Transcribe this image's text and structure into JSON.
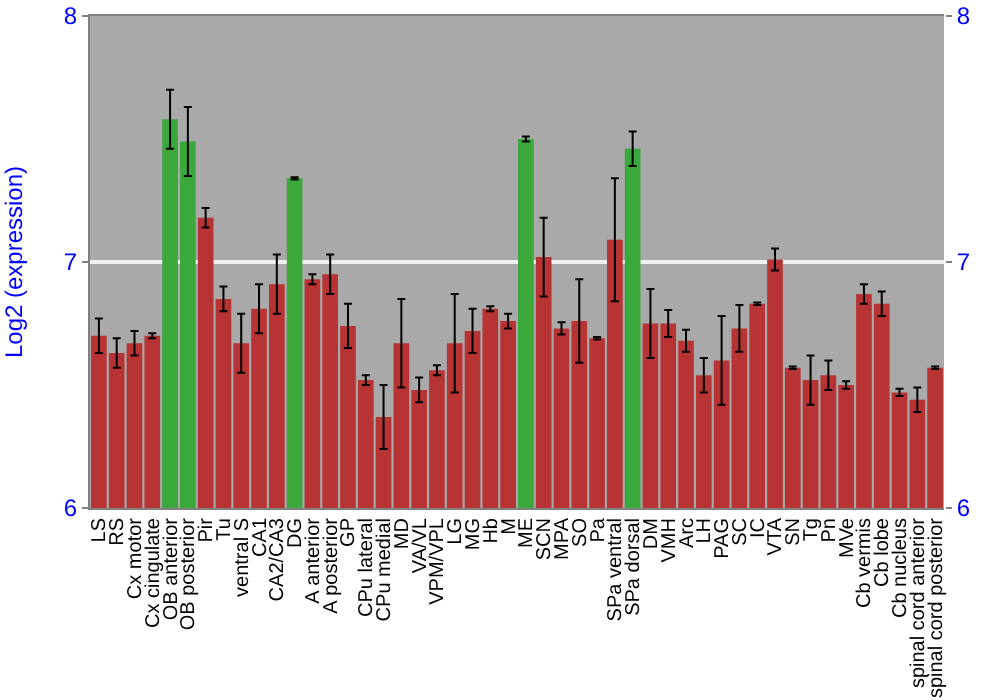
{
  "chart_data": {
    "type": "bar",
    "ylabel": "Log2 (expression)",
    "categories": [
      "LS",
      "RS",
      "Cx motor",
      "Cx cingulate",
      "OB anterior",
      "OB posterior",
      "Pir",
      "Tu",
      "ventral S",
      "CA1",
      "CA2/CA3",
      "DG",
      "A anterior",
      "A posterior",
      "GP",
      "CPu lateral",
      "CPu medial",
      "MD",
      "VA/VL",
      "VPM/VPL",
      "LG",
      "MG",
      "Hb",
      "M",
      "ME",
      "SCN",
      "MPA",
      "SO",
      "Pa",
      "SPa ventral",
      "SPa dorsal",
      "DM",
      "VMH",
      "Arc",
      "LH",
      "PAG",
      "SC",
      "IC",
      "VTA",
      "SN",
      "Tg",
      "Pn",
      "MVe",
      "Cb vermis",
      "Cb lobe",
      "Cb nucleus",
      "spinal cord anterior",
      "spinal cord posterior"
    ],
    "values": [
      6.7,
      6.63,
      6.67,
      6.7,
      7.58,
      7.49,
      7.18,
      6.85,
      6.67,
      6.81,
      6.91,
      7.34,
      6.93,
      6.95,
      6.74,
      6.52,
      6.37,
      6.67,
      6.48,
      6.56,
      6.67,
      6.72,
      6.81,
      6.76,
      7.5,
      7.02,
      6.73,
      6.76,
      6.69,
      7.09,
      7.46,
      6.75,
      6.75,
      6.68,
      6.54,
      6.6,
      6.73,
      6.83,
      7.01,
      6.57,
      6.52,
      6.54,
      6.5,
      6.87,
      6.83,
      6.47,
      6.44,
      6.57
    ],
    "errors": [
      0.07,
      0.06,
      0.05,
      0.01,
      0.12,
      0.14,
      0.04,
      0.05,
      0.12,
      0.1,
      0.12,
      0.005,
      0.02,
      0.08,
      0.09,
      0.02,
      0.13,
      0.18,
      0.05,
      0.02,
      0.2,
      0.09,
      0.01,
      0.03,
      0.01,
      0.16,
      0.025,
      0.17,
      0.005,
      0.25,
      0.07,
      0.14,
      0.055,
      0.045,
      0.07,
      0.18,
      0.095,
      0.005,
      0.045,
      0.005,
      0.1,
      0.06,
      0.015,
      0.04,
      0.05,
      0.015,
      0.05,
      0.005
    ],
    "colors": [
      "#b83434",
      "#b83434",
      "#b83434",
      "#b83434",
      "#3aa83a",
      "#3aa83a",
      "#b83434",
      "#b83434",
      "#b83434",
      "#b83434",
      "#b83434",
      "#3aa83a",
      "#b83434",
      "#b83434",
      "#b83434",
      "#b83434",
      "#b83434",
      "#b83434",
      "#b83434",
      "#b83434",
      "#b83434",
      "#b83434",
      "#b83434",
      "#b83434",
      "#3aa83a",
      "#b83434",
      "#b83434",
      "#b83434",
      "#b83434",
      "#b83434",
      "#3aa83a",
      "#b83434",
      "#b83434",
      "#b83434",
      "#b83434",
      "#b83434",
      "#b83434",
      "#b83434",
      "#b83434",
      "#b83434",
      "#b83434",
      "#b83434",
      "#b83434",
      "#b83434",
      "#b83434",
      "#b83434",
      "#b83434",
      "#b83434"
    ],
    "ylim": [
      6,
      8
    ],
    "yticks": [
      6,
      7,
      8
    ],
    "y2lim": [
      6,
      8
    ],
    "y2ticks": [
      6,
      7,
      8
    ],
    "grid": "y"
  }
}
